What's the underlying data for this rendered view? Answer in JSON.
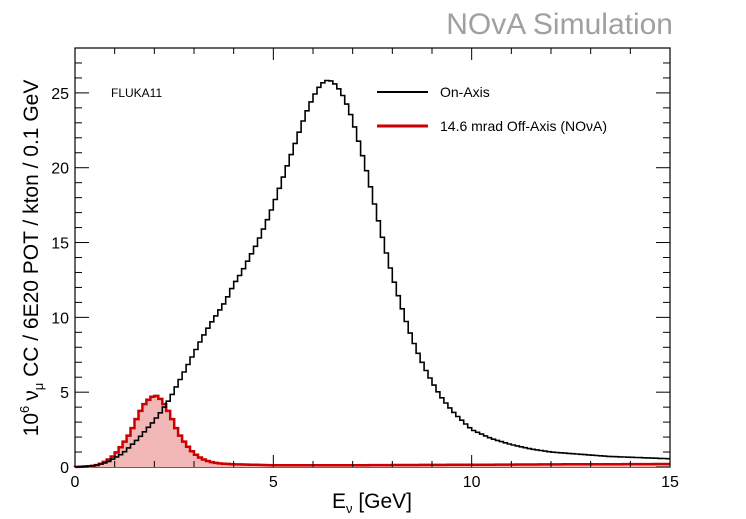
{
  "watermark": "NOvA Simulation",
  "annotation": "FLUKA11",
  "chart_data": {
    "type": "line",
    "xlabel": "E",
    "xlabel_sub": "ν",
    "xlabel_tail": " [GeV]",
    "ylabel_prefix": "10",
    "ylabel_exp": "6",
    "ylabel_nu": "ν",
    "ylabel_sub": "μ",
    "ylabel_tail": " CC / 6E20 POT / kton / 0.1 GeV",
    "xlim": [
      0,
      15
    ],
    "ylim": [
      0,
      28
    ],
    "xticks": [
      0,
      5,
      10,
      15
    ],
    "yticks": [
      0,
      5,
      10,
      15,
      20,
      25
    ],
    "legend_position": "top-right",
    "series": [
      {
        "name": "On-Axis",
        "color": "#000000",
        "fill": false,
        "x": [
          0.0,
          0.5,
          0.8,
          1.0,
          1.2,
          1.4,
          1.6,
          1.8,
          2.0,
          2.2,
          2.4,
          2.6,
          2.8,
          3.0,
          3.2,
          3.4,
          3.6,
          3.8,
          4.0,
          4.2,
          4.4,
          4.6,
          4.8,
          5.0,
          5.2,
          5.4,
          5.6,
          5.8,
          6.0,
          6.2,
          6.4,
          6.6,
          6.8,
          7.0,
          7.2,
          7.4,
          7.6,
          7.8,
          8.0,
          8.2,
          8.4,
          8.6,
          8.8,
          9.0,
          9.2,
          9.4,
          9.6,
          9.8,
          10.0,
          10.5,
          11.0,
          11.5,
          12.0,
          12.5,
          13.0,
          13.5,
          14.0,
          14.5,
          15.0
        ],
        "y": [
          0.0,
          0.1,
          0.3,
          0.6,
          0.9,
          1.4,
          1.9,
          2.5,
          3.1,
          3.8,
          4.6,
          5.6,
          6.6,
          7.6,
          8.6,
          9.5,
          10.3,
          11.1,
          12.2,
          13.0,
          14.0,
          15.0,
          16.2,
          17.5,
          19.0,
          20.5,
          22.0,
          23.5,
          24.7,
          25.6,
          25.9,
          25.5,
          24.6,
          23.2,
          21.3,
          19.3,
          17.0,
          14.8,
          12.8,
          11.0,
          9.3,
          7.9,
          6.7,
          5.7,
          4.8,
          4.1,
          3.5,
          3.0,
          2.5,
          1.9,
          1.5,
          1.2,
          1.0,
          0.9,
          0.8,
          0.7,
          0.65,
          0.6,
          0.55
        ]
      },
      {
        "name": "14.6 mrad Off-Axis (NOνA)",
        "color": "#cc0000",
        "fill": true,
        "fill_color": "#f2b8b8",
        "x": [
          0.0,
          0.4,
          0.6,
          0.8,
          1.0,
          1.2,
          1.4,
          1.5,
          1.6,
          1.7,
          1.8,
          1.9,
          2.0,
          2.1,
          2.2,
          2.3,
          2.4,
          2.5,
          2.6,
          2.8,
          3.0,
          3.2,
          3.4,
          3.6,
          4.0,
          5.0,
          7.0,
          10.0,
          12.5,
          15.0
        ],
        "y": [
          0.0,
          0.05,
          0.15,
          0.4,
          0.8,
          1.5,
          2.3,
          2.9,
          3.5,
          4.0,
          4.4,
          4.6,
          4.8,
          4.7,
          4.4,
          4.0,
          3.5,
          2.9,
          2.3,
          1.5,
          0.9,
          0.55,
          0.35,
          0.25,
          0.18,
          0.12,
          0.12,
          0.15,
          0.18,
          0.2
        ]
      }
    ]
  }
}
